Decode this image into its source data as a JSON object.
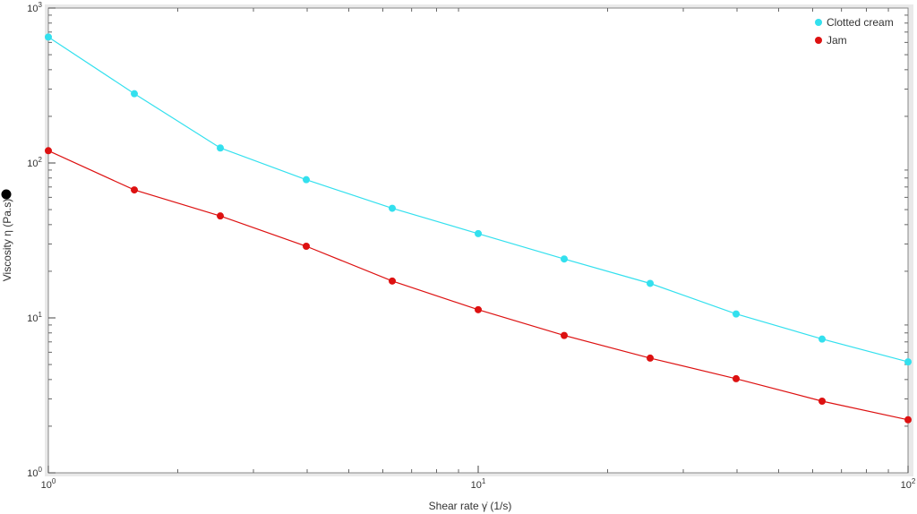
{
  "chart_data": {
    "type": "line",
    "xlabel": "Shear rate  γ̇  (1/s)",
    "ylabel": "Viscosity  η  (Pa.s)",
    "x_scale": "log",
    "y_scale": "log",
    "xlim": [
      1,
      100
    ],
    "ylim": [
      1,
      1000
    ],
    "x_ticks": [
      {
        "value": 1,
        "base": "10",
        "exp": "0"
      },
      {
        "value": 10,
        "base": "10",
        "exp": "1"
      },
      {
        "value": 100,
        "base": "10",
        "exp": "2"
      }
    ],
    "y_ticks": [
      {
        "value": 1,
        "base": "10",
        "exp": "0"
      },
      {
        "value": 10,
        "base": "10",
        "exp": "1"
      },
      {
        "value": 100,
        "base": "10",
        "exp": "2"
      },
      {
        "value": 1000,
        "base": "10",
        "exp": "3"
      }
    ],
    "grid": false,
    "legend_position": "top-right",
    "series": [
      {
        "name": "Clotted cream",
        "color": "#33e0ee",
        "x": [
          1,
          1.585,
          2.512,
          3.981,
          6.31,
          10,
          15.85,
          25.12,
          39.81,
          63.1,
          100
        ],
        "y": [
          650,
          280,
          125,
          78,
          51,
          35,
          24,
          16.7,
          10.6,
          7.3,
          5.2
        ]
      },
      {
        "name": "Jam",
        "color": "#dd1111",
        "x": [
          1,
          1.585,
          2.512,
          3.981,
          6.31,
          10,
          15.85,
          25.12,
          39.81,
          63.1,
          100
        ],
        "y": [
          120,
          67,
          45.5,
          29,
          17.3,
          11.3,
          7.7,
          5.5,
          4.05,
          2.9,
          2.2
        ]
      }
    ]
  }
}
